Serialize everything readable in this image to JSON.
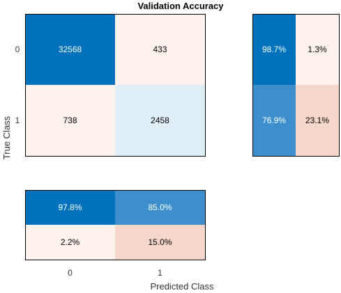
{
  "chart_data": {
    "type": "heatmap",
    "title": "Validation Accuracy",
    "xlabel": "Predicted Class",
    "ylabel": "True Class",
    "classes": [
      "0",
      "1"
    ],
    "confusion_matrix": [
      [
        32568,
        433
      ],
      [
        738,
        2458
      ]
    ],
    "row_summary": {
      "values": [
        [
          "98.7%",
          "1.3%"
        ],
        [
          "76.9%",
          "23.1%"
        ]
      ],
      "fractions": [
        [
          0.987,
          0.013
        ],
        [
          0.769,
          0.231
        ]
      ]
    },
    "column_summary": {
      "values": [
        [
          "97.8%",
          "85.0%"
        ],
        [
          "2.2%",
          "15.0%"
        ]
      ],
      "fractions": [
        [
          0.978,
          0.85
        ],
        [
          0.022,
          0.15
        ]
      ]
    },
    "colors": {
      "correct_strong": "#0072BD",
      "correct_medium": "#3C8FCC",
      "correct_light": "#DFEDF7",
      "incorrect_light": "#FDF2EE",
      "incorrect_medium": "#F5D6CA",
      "text_dark": "#000000",
      "text_light": "#FFFFFF",
      "grid": "#000000"
    }
  }
}
